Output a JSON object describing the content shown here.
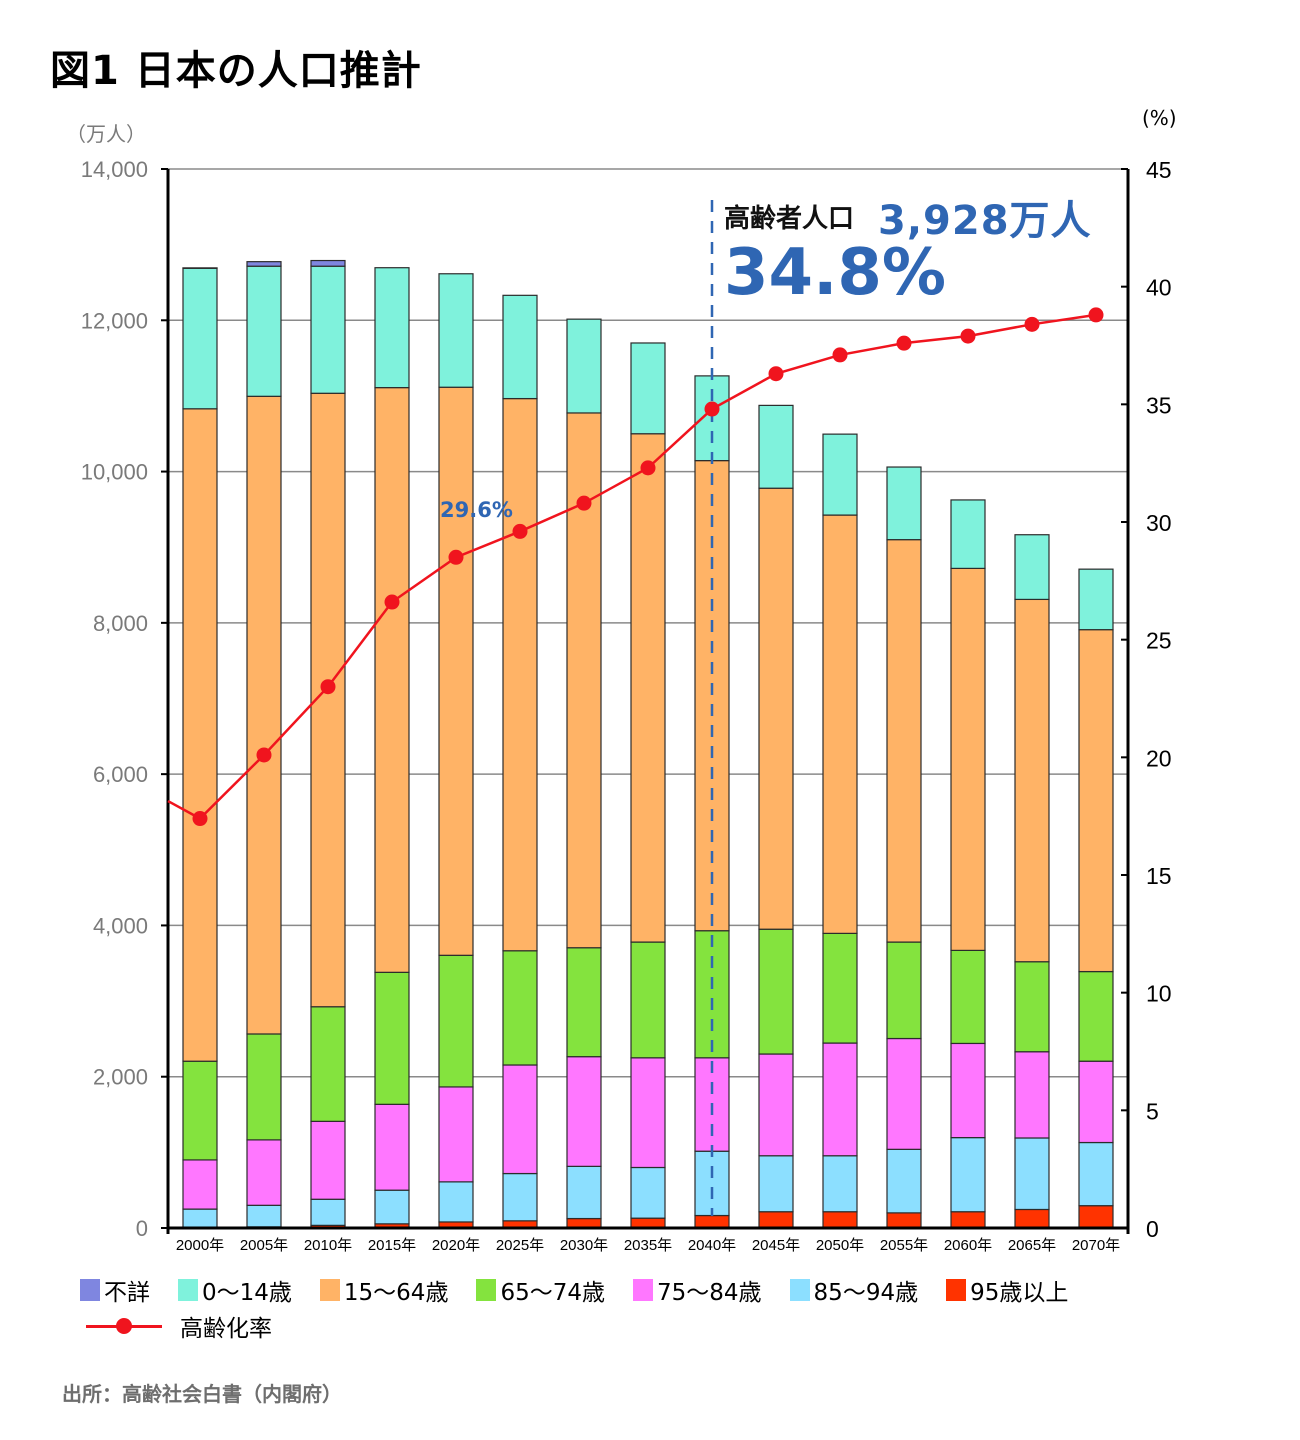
{
  "title": "図1 日本の人口推計",
  "source": "出所：高齢社会白書（内閣府）",
  "annotation": {
    "label": "高齢者人口",
    "value": "3,928万人",
    "percent": "34.8%",
    "year": "2040年",
    "callout_2025": "29.6%"
  },
  "chart_data": {
    "type": "bar",
    "subtype": "stacked-bar-with-line",
    "title": "図1 日本の人口推計",
    "xlabel": "",
    "ylabel": "（万人）",
    "ylabel_right": "(%)",
    "ylim": [
      0,
      14000
    ],
    "ylim_right": [
      0,
      45
    ],
    "yticks": [
      "0",
      "2,000",
      "4,000",
      "6,000",
      "8,000",
      "10,000",
      "12,000",
      "14,000"
    ],
    "yticks_right": [
      "0",
      "5",
      "10",
      "15",
      "20",
      "25",
      "30",
      "35",
      "40",
      "45"
    ],
    "grid": true,
    "legend_position": "bottom",
    "categories": [
      "2000年",
      "2005年",
      "2010年",
      "2015年",
      "2020年",
      "2025年",
      "2030年",
      "2035年",
      "2040年",
      "2045年",
      "2050年",
      "2055年",
      "2060年",
      "2065年",
      "2070年"
    ],
    "series": [
      {
        "name": "95歳以上",
        "color": "#ff3300",
        "values": [
          10,
          15,
          35,
          55,
          80,
          95,
          125,
          130,
          165,
          215,
          215,
          200,
          215,
          245,
          295
        ]
      },
      {
        "name": "85〜94歳",
        "color": "#8cdfff",
        "values": [
          240,
          285,
          345,
          445,
          530,
          625,
          690,
          670,
          850,
          740,
          740,
          840,
          980,
          945,
          835
        ]
      },
      {
        "name": "75〜84歳",
        "color": "#ff77ff",
        "values": [
          650,
          865,
          1030,
          1135,
          1255,
          1435,
          1450,
          1450,
          1235,
          1345,
          1490,
          1465,
          1245,
          1140,
          1075
        ]
      },
      {
        "name": "65〜74歳",
        "color": "#84e33e",
        "values": [
          1305,
          1400,
          1515,
          1745,
          1740,
          1510,
          1440,
          1530,
          1680,
          1650,
          1450,
          1275,
          1230,
          1190,
          1185
        ]
      },
      {
        "name": "15〜64歳",
        "color": "#ffb366",
        "values": [
          8625,
          8430,
          8110,
          7730,
          7510,
          7300,
          7070,
          6720,
          6215,
          5830,
          5530,
          5320,
          5050,
          4790,
          4520
        ]
      },
      {
        "name": "0〜14歳",
        "color": "#7ff2dc",
        "values": [
          1860,
          1720,
          1680,
          1585,
          1500,
          1365,
          1240,
          1200,
          1120,
          1095,
          1070,
          960,
          905,
          855,
          800
        ]
      },
      {
        "name": "不詳",
        "color": "#7f86e0",
        "values": [
          3,
          60,
          75,
          0,
          0,
          0,
          0,
          0,
          0,
          0,
          0,
          0,
          0,
          0,
          0
        ]
      }
    ],
    "line_series": {
      "name": "高齢化率",
      "color": "#f0141e",
      "axis": "right",
      "unit": "%",
      "values": [
        17.4,
        20.1,
        23.0,
        26.6,
        28.5,
        29.6,
        30.8,
        32.3,
        34.8,
        36.3,
        37.1,
        37.6,
        37.9,
        38.4,
        38.8
      ]
    },
    "reference_line": {
      "category": "2040年",
      "style": "dashed",
      "color": "#2f66b3"
    }
  },
  "legend": {
    "items": [
      {
        "label": "不詳",
        "color": "#7f86e0"
      },
      {
        "label": "0〜14歳",
        "color": "#7ff2dc"
      },
      {
        "label": "15〜64歳",
        "color": "#ffb366"
      },
      {
        "label": "65〜74歳",
        "color": "#84e33e"
      },
      {
        "label": "75〜84歳",
        "color": "#ff77ff"
      },
      {
        "label": "85〜94歳",
        "color": "#8cdfff"
      },
      {
        "label": "95歳以上",
        "color": "#ff3300"
      }
    ],
    "line_label": "高齢化率"
  }
}
